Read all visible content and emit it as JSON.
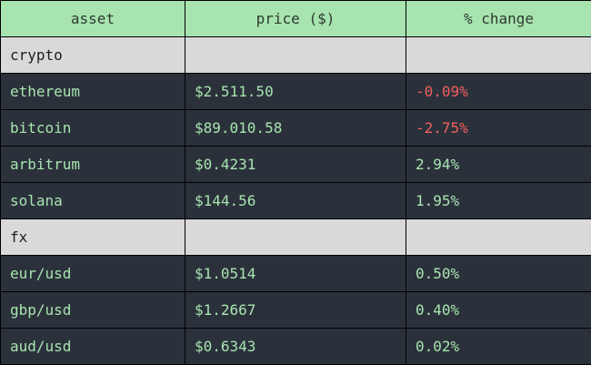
{
  "columns": [
    "asset",
    "price ($)",
    "% change"
  ],
  "groups": [
    {
      "name": "crypto",
      "rows": [
        {
          "asset": "ethereum",
          "price": "$2.511.50",
          "change": "-0.09%",
          "negative": true
        },
        {
          "asset": "bitcoin",
          "price": "$89.010.58",
          "change": "-2.75%",
          "negative": true
        },
        {
          "asset": "arbitrum",
          "price": "$0.4231",
          "change": "2.94%",
          "negative": false
        },
        {
          "asset": "solana",
          "price": "$144.56",
          "change": "1.95%",
          "negative": false
        }
      ]
    },
    {
      "name": "fx",
      "rows": [
        {
          "asset": "eur/usd",
          "price": "$1.0514",
          "change": "0.50%",
          "negative": false
        },
        {
          "asset": "gbp/usd",
          "price": "$1.2667",
          "change": "0.40%",
          "negative": false
        },
        {
          "asset": "aud/usd",
          "price": "$0.6343",
          "change": "0.02%",
          "negative": false
        }
      ]
    }
  ],
  "colors": {
    "header_bg": "#a8e4b0",
    "group_bg": "#d9d9d9",
    "row_bg": "#2b313b",
    "positive_text": "#a8e4b0",
    "negative_text": "#f05f5f"
  }
}
